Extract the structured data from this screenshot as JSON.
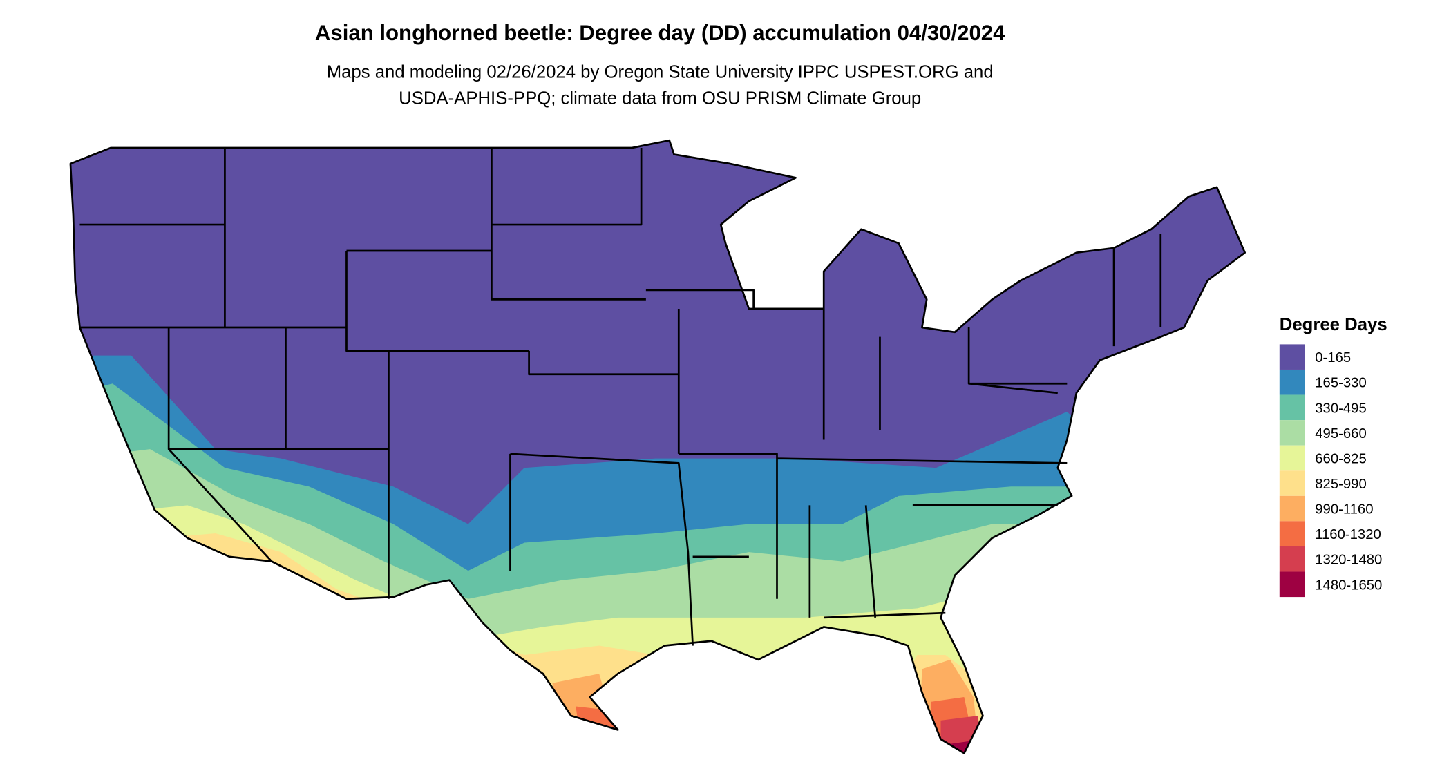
{
  "header": {
    "title": "Asian longhorned beetle: Degree day (DD) accumulation 04/30/2024",
    "subtitle": [
      "Maps and modeling 02/26/2024 by Oregon State University IPPC USPEST.ORG and",
      "USDA-APHIS-PPQ; climate data from OSU PRISM Climate Group"
    ]
  },
  "legend": {
    "title": "Degree Days",
    "items": [
      {
        "label": "0-165",
        "color": "#5e4fa2"
      },
      {
        "label": "165-330",
        "color": "#3288bd"
      },
      {
        "label": "330-495",
        "color": "#66c2a5"
      },
      {
        "label": "495-660",
        "color": "#abdda4"
      },
      {
        "label": "660-825",
        "color": "#e6f598"
      },
      {
        "label": "825-990",
        "color": "#fee08b"
      },
      {
        "label": "990-1160",
        "color": "#fdae61"
      },
      {
        "label": "1160-1320",
        "color": "#f46d43"
      },
      {
        "label": "1320-1480",
        "color": "#d53e4f"
      },
      {
        "label": "1480-1650",
        "color": "#9e0142"
      }
    ]
  }
}
